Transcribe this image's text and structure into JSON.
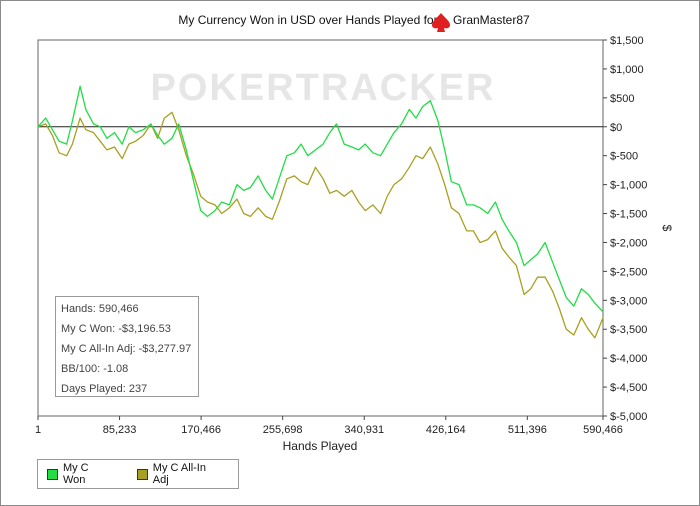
{
  "chart_data": {
    "type": "line",
    "title": "My Currency Won in USD over Hands Played for",
    "player": "GranMaster87",
    "watermark": "POKERTRACKER",
    "xlabel": "Hands Played",
    "ylabel": "$",
    "xlim": [
      1,
      590466
    ],
    "ylim": [
      -5000,
      1500
    ],
    "x_ticks": [
      "1",
      "85,233",
      "170,466",
      "255,698",
      "340,931",
      "426,164",
      "511,396",
      "590,466"
    ],
    "x_tick_values": [
      1,
      85233,
      170466,
      255698,
      340931,
      426164,
      511396,
      590466
    ],
    "y_ticks": [
      "$1,500",
      "$1,000",
      "$500",
      "$0",
      "$-500",
      "$-1,000",
      "$-1,500",
      "$-2,000",
      "$-2,500",
      "$-3,000",
      "$-3,500",
      "$-4,000",
      "$-4,500",
      "$-5,000"
    ],
    "y_tick_values": [
      1500,
      1000,
      500,
      0,
      -500,
      -1000,
      -1500,
      -2000,
      -2500,
      -3000,
      -3500,
      -4000,
      -4500,
      -5000
    ],
    "legend_position": "bottom-left",
    "series": [
      {
        "name": "My C Won",
        "color": "#22dd44",
        "x": [
          1,
          8000,
          15000,
          22000,
          30000,
          36000,
          44000,
          50000,
          58000,
          65000,
          72000,
          80000,
          88000,
          95000,
          102000,
          110000,
          118000,
          125000,
          132000,
          140000,
          147000,
          155000,
          162000,
          170000,
          177000,
          185000,
          192000,
          200000,
          208000,
          215000,
          222000,
          230000,
          238000,
          245000,
          252000,
          260000,
          268000,
          275000,
          282000,
          290000,
          298000,
          305000,
          312000,
          320000,
          328000,
          335000,
          342000,
          350000,
          358000,
          365000,
          372000,
          380000,
          388000,
          395000,
          402000,
          410000,
          418000,
          425000,
          432000,
          440000,
          448000,
          455000,
          462000,
          470000,
          478000,
          485000,
          492000,
          500000,
          508000,
          515000,
          522000,
          530000,
          538000,
          545000,
          552000,
          560000,
          568000,
          575000,
          582000,
          590466
        ],
        "y": [
          0,
          150,
          -50,
          -250,
          -300,
          100,
          700,
          300,
          50,
          0,
          -200,
          -100,
          -300,
          0,
          -100,
          -50,
          50,
          -150,
          -300,
          -200,
          50,
          -400,
          -900,
          -1450,
          -1550,
          -1450,
          -1300,
          -1350,
          -1000,
          -1100,
          -1050,
          -850,
          -1100,
          -1250,
          -900,
          -500,
          -450,
          -300,
          -500,
          -400,
          -300,
          -100,
          50,
          -300,
          -350,
          -400,
          -300,
          -450,
          -500,
          -300,
          -100,
          50,
          300,
          150,
          350,
          450,
          100,
          -400,
          -950,
          -1000,
          -1350,
          -1350,
          -1400,
          -1500,
          -1300,
          -1600,
          -1800,
          -2000,
          -2400,
          -2300,
          -2200,
          -2000,
          -2350,
          -2650,
          -2950,
          -3100,
          -2800,
          -2900,
          -3050,
          -3200
        ]
      },
      {
        "name": "My C All-In Adj",
        "color": "#a8a020",
        "x": [
          1,
          8000,
          15000,
          22000,
          30000,
          36000,
          44000,
          50000,
          58000,
          65000,
          72000,
          80000,
          88000,
          95000,
          102000,
          110000,
          118000,
          125000,
          132000,
          140000,
          147000,
          155000,
          162000,
          170000,
          177000,
          185000,
          192000,
          200000,
          208000,
          215000,
          222000,
          230000,
          238000,
          245000,
          252000,
          260000,
          268000,
          275000,
          282000,
          290000,
          298000,
          305000,
          312000,
          320000,
          328000,
          335000,
          342000,
          350000,
          358000,
          365000,
          372000,
          380000,
          388000,
          395000,
          402000,
          410000,
          418000,
          425000,
          432000,
          440000,
          448000,
          455000,
          462000,
          470000,
          478000,
          485000,
          492000,
          500000,
          508000,
          515000,
          522000,
          530000,
          538000,
          545000,
          552000,
          560000,
          568000,
          575000,
          582000,
          590466
        ],
        "y": [
          0,
          50,
          -150,
          -450,
          -500,
          -300,
          150,
          -50,
          -100,
          -250,
          -400,
          -350,
          -550,
          -300,
          -250,
          -150,
          50,
          -200,
          150,
          250,
          -50,
          -500,
          -800,
          -1200,
          -1300,
          -1350,
          -1500,
          -1400,
          -1250,
          -1500,
          -1550,
          -1400,
          -1550,
          -1600,
          -1300,
          -900,
          -850,
          -950,
          -1000,
          -700,
          -900,
          -1150,
          -1100,
          -1200,
          -1100,
          -1300,
          -1450,
          -1350,
          -1500,
          -1200,
          -1000,
          -900,
          -700,
          -500,
          -550,
          -350,
          -650,
          -1000,
          -1400,
          -1500,
          -1800,
          -1800,
          -2000,
          -1950,
          -1800,
          -2100,
          -2250,
          -2400,
          -2900,
          -2800,
          -2600,
          -2600,
          -2850,
          -3150,
          -3500,
          -3600,
          -3300,
          -3500,
          -3650,
          -3300
        ]
      }
    ]
  },
  "stats": {
    "hands": "Hands: 590,466",
    "won": "My C Won: -$3,196.53",
    "allin": "My C All-In Adj: -$3,277.97",
    "bb100": "BB/100: -1.08",
    "days": "Days Played: 237"
  },
  "legend": [
    {
      "label": "My C Won",
      "color": "#22dd44"
    },
    {
      "label": "My C All-In Adj",
      "color": "#a8a020"
    }
  ]
}
